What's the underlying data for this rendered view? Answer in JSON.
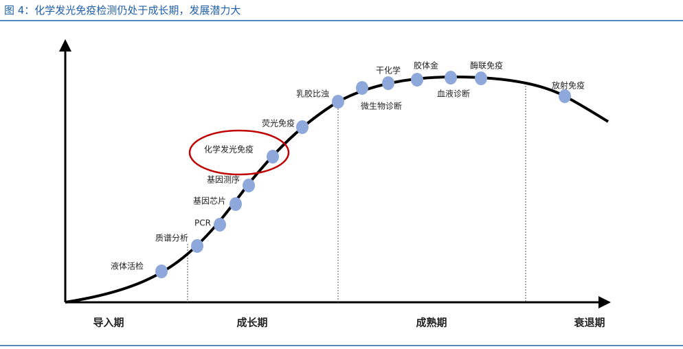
{
  "header": {
    "title": "图 4：化学发光免疫检测仍处于成长期，发展潜力大"
  },
  "nodes": [
    {
      "label": "液体活检"
    },
    {
      "label": "质谱分析"
    },
    {
      "label": "PCR"
    },
    {
      "label": "基因芯片"
    },
    {
      "label": "基因测序"
    },
    {
      "label": "化学发光免疫"
    },
    {
      "label": "荧光免疫"
    },
    {
      "label": "乳胶比浊"
    },
    {
      "label": "微生物诊断"
    },
    {
      "label": "干化学"
    },
    {
      "label": "胶体金"
    },
    {
      "label": "血液诊断"
    },
    {
      "label": "酶联免疫"
    },
    {
      "label": "放射免疫"
    }
  ],
  "stages": [
    "导入期",
    "成长期",
    "成熟期",
    "衰退期"
  ]
}
